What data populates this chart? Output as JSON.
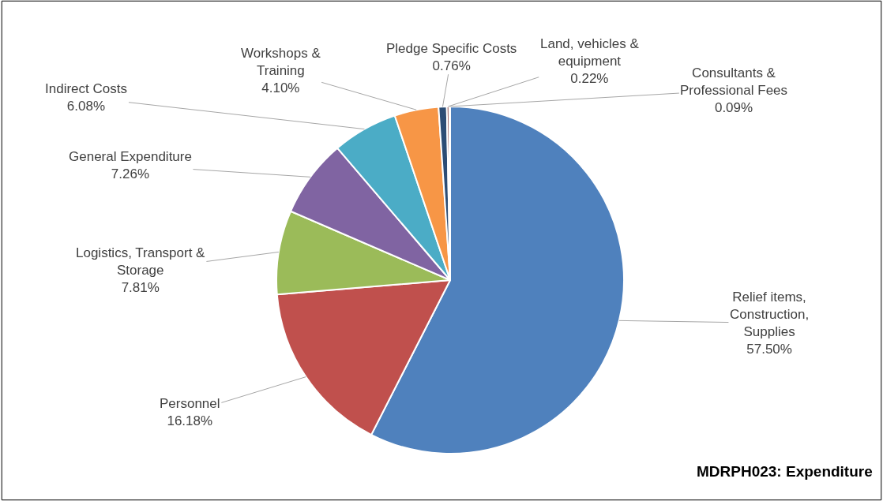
{
  "chart_data": {
    "type": "pie",
    "title": "MDRPH023: Expenditure",
    "categories": [
      "Relief items,\nConstruction,\nSupplies",
      "Personnel",
      "Logistics, Transport &\nStorage",
      "General Expenditure",
      "Indirect Costs",
      "Workshops &\nTraining",
      "Pledge Specific Costs",
      "Land, vehicles &\nequipment",
      "Consultants &\nProfessional Fees"
    ],
    "values": [
      57.5,
      16.18,
      7.81,
      7.26,
      6.08,
      4.1,
      0.76,
      0.22,
      0.09
    ],
    "colors": [
      "#4f81bd",
      "#c0504d",
      "#9bbb59",
      "#8064a2",
      "#4bacc6",
      "#f79646",
      "#2c4d75",
      "#772c2a",
      "#5f7530"
    ],
    "value_labels": [
      "57.50%",
      "16.18%",
      "7.81%",
      "7.26%",
      "6.08%",
      "4.10%",
      "0.76%",
      "0.22%",
      "0.09%"
    ],
    "legend": false
  }
}
